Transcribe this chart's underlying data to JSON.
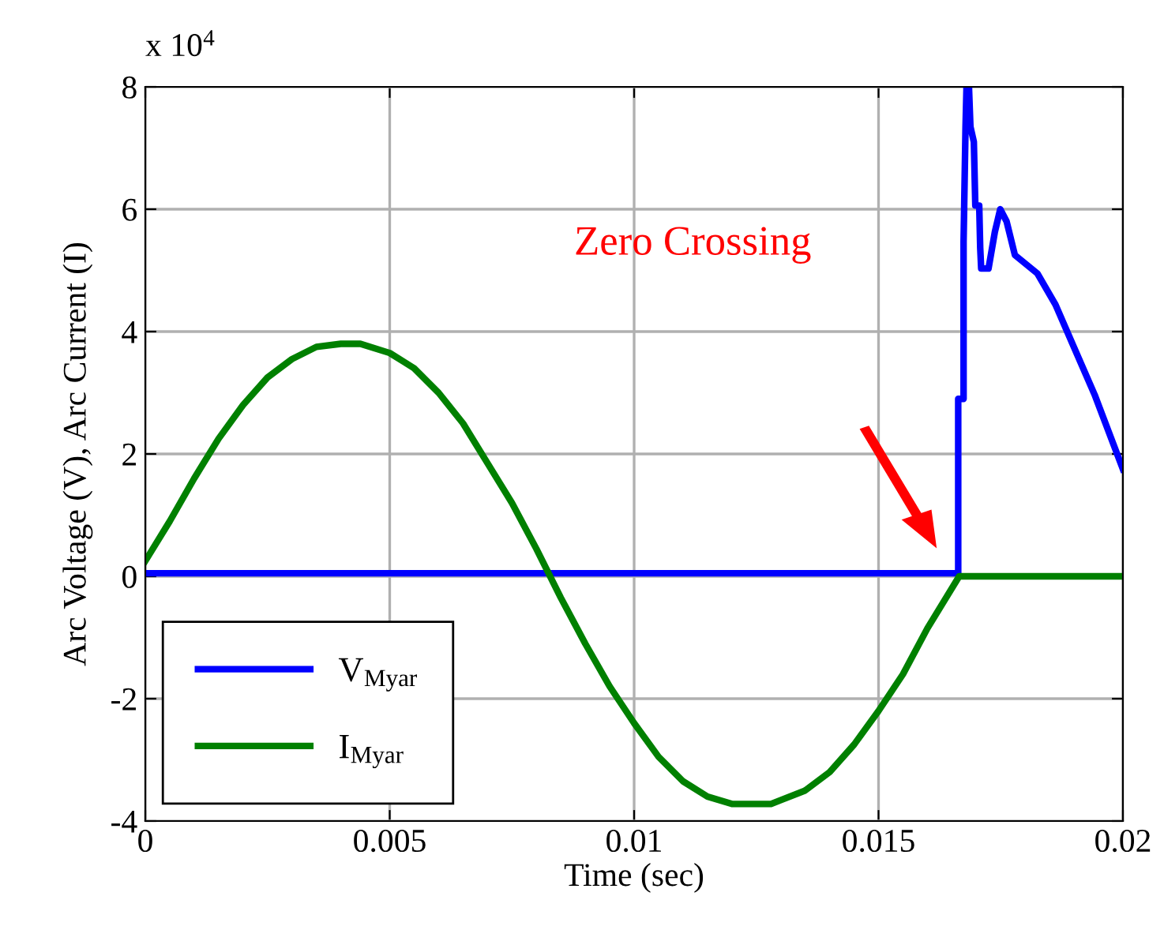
{
  "chart_data": {
    "type": "line",
    "xlabel": "Time (sec)",
    "ylabel": "Arc Voltage (V), Arc Current (I)",
    "xlim": [
      0,
      0.02
    ],
    "xticks": [
      0,
      0.005,
      0.01,
      0.015,
      0.02
    ],
    "ylim": [
      -4,
      8
    ],
    "yticks": [
      -4,
      -2,
      0,
      2,
      4,
      6,
      8
    ],
    "grid": true,
    "legend": "bottom left",
    "line_style": "solid",
    "marker": "none",
    "series": [
      {
        "name": "V$_{Myar}$",
        "color": "#0000ff",
        "x": [
          0,
          0.01663,
          0.01663,
          0.01674,
          0.01674,
          0.01678,
          0.0168,
          0.01685,
          0.01688,
          0.01695,
          0.01698,
          0.01706,
          0.01708,
          0.0171,
          0.01725,
          0.01738,
          0.01749,
          0.01762,
          0.01779,
          0.01825,
          0.01862,
          0.019,
          0.01942,
          0.02
        ],
        "values": [
          0.05,
          0.05,
          2.9,
          2.9,
          5.47,
          7.35,
          8,
          8,
          7.35,
          7.1,
          6.06,
          6.06,
          5.37,
          5.03,
          5.03,
          5.63,
          6.0,
          5.8,
          5.25,
          4.95,
          4.44,
          3.74,
          2.97,
          1.75
        ]
      },
      {
        "name": "I$_{Myar}$",
        "color": "#008000",
        "x": [
          0,
          0.0005,
          0.001,
          0.0015,
          0.002,
          0.0025,
          0.003,
          0.0035,
          0.004,
          0.0044,
          0.005,
          0.0055,
          0.006,
          0.0065,
          0.007,
          0.0075,
          0.008,
          0.0085,
          0.009,
          0.0095,
          0.01,
          0.0105,
          0.011,
          0.0115,
          0.012,
          0.0128,
          0.0135,
          0.014,
          0.0145,
          0.015,
          0.0155,
          0.016,
          0.01665,
          0.02
        ],
        "values": [
          0.25,
          0.9,
          1.6,
          2.25,
          2.8,
          3.25,
          3.55,
          3.75,
          3.8,
          3.8,
          3.65,
          3.4,
          3.0,
          2.5,
          1.85,
          1.2,
          0.45,
          -0.35,
          -1.1,
          -1.8,
          -2.4,
          -2.95,
          -3.35,
          -3.6,
          -3.72,
          -3.72,
          -3.5,
          -3.2,
          -2.75,
          -2.2,
          -1.6,
          -0.85,
          0,
          0
        ]
      }
    ],
    "annotations": [
      "x 10$^{4}$",
      "Zero Crossing"
    ]
  }
}
